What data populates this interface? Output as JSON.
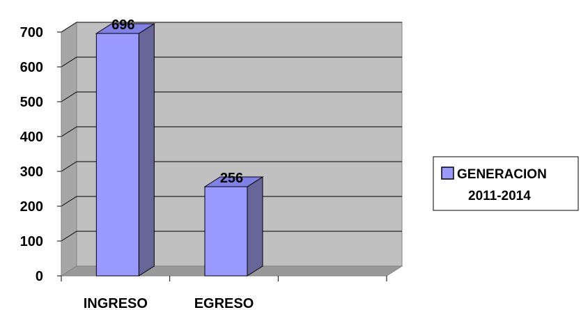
{
  "chart_data": {
    "type": "bar",
    "categories": [
      "INGRESO",
      "EGRESO",
      ""
    ],
    "series": [
      {
        "name": "GENERACION 2011-2014",
        "values": [
          696,
          256,
          null
        ]
      }
    ],
    "data_labels": [
      "696",
      "256"
    ],
    "y_ticks": [
      "0",
      "100",
      "200",
      "300",
      "400",
      "500",
      "600",
      "700"
    ],
    "ylim": [
      0,
      700
    ],
    "grid": true,
    "legend_position": "right",
    "legend_lines": [
      "GENERACION",
      "2011-2014"
    ],
    "colors": {
      "bar_front": "#9999ff",
      "bar_side": "#666699",
      "bar_top": "#8080e6",
      "wall": "#c0c0c0",
      "wall_side": "#a6a6a6",
      "floor": "#999999",
      "grid": "#000000"
    }
  }
}
